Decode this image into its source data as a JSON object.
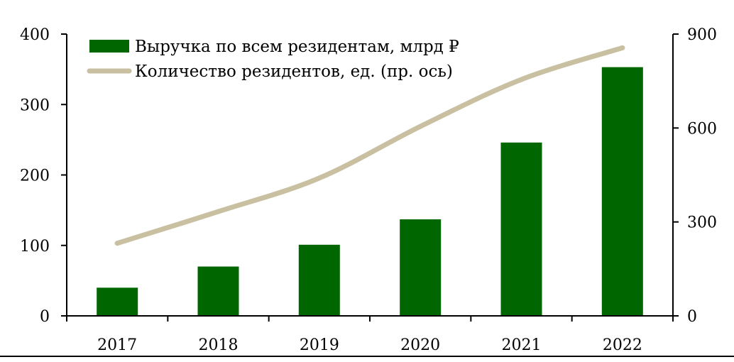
{
  "chart_data": {
    "type": "bar",
    "categories": [
      "2017",
      "2018",
      "2019",
      "2020",
      "2021",
      "2022"
    ],
    "series": [
      {
        "name": "Выручка по всем резидентам, млрд ₽",
        "type": "bar",
        "axis": "left",
        "color": "#006600",
        "values": [
          40,
          70,
          101,
          137,
          246,
          353
        ]
      },
      {
        "name": "Количество резидентов, ед. (пр. ось)",
        "type": "line",
        "axis": "right",
        "color": "#c8c0a0",
        "values": [
          232,
          333,
          440,
          605,
          755,
          856
        ]
      }
    ],
    "y_left": {
      "ylim": [
        0,
        400
      ],
      "ticks": [
        "0",
        "100",
        "200",
        "300",
        "400"
      ]
    },
    "y_right": {
      "ylim": [
        0,
        900
      ],
      "ticks": [
        "0",
        "300",
        "600",
        "900"
      ]
    },
    "legend_position": "top-left",
    "grid": false,
    "title": "",
    "xlabel": "",
    "ylabel": ""
  }
}
